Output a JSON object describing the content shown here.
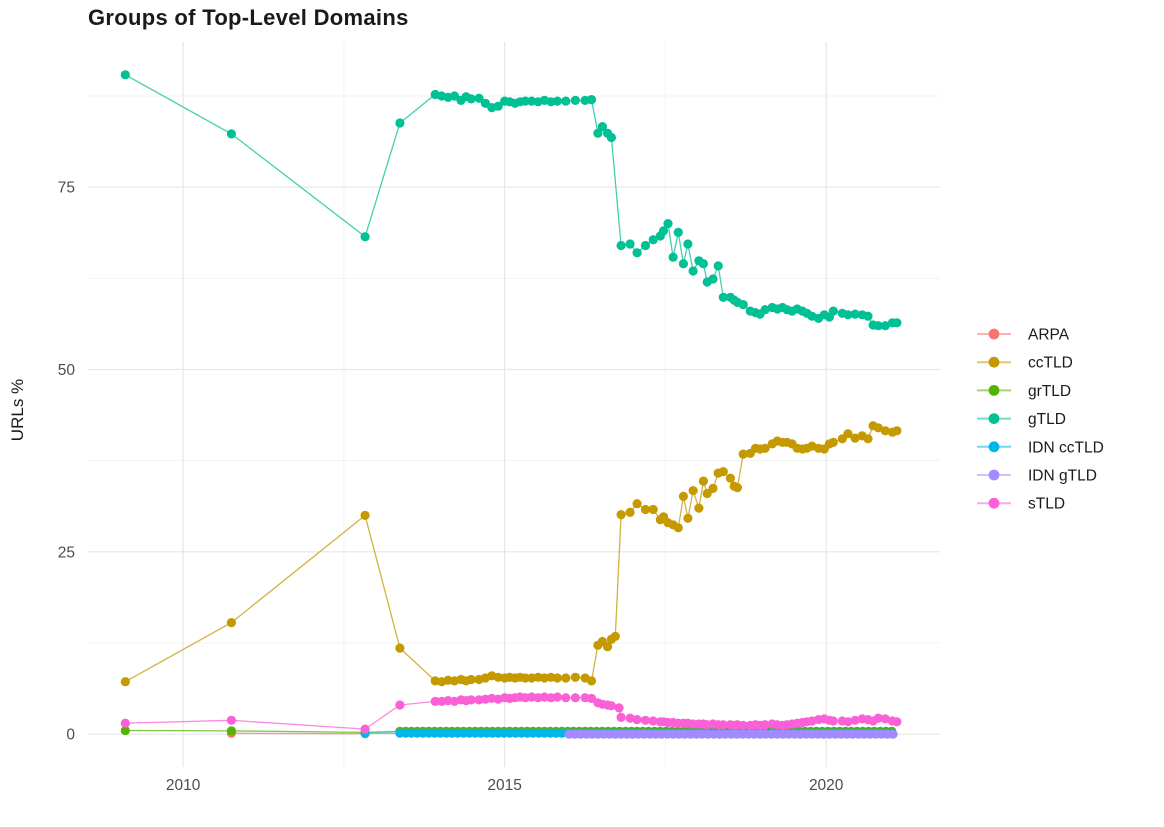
{
  "title": "Groups of Top-Level Domains",
  "chart_data": {
    "type": "line",
    "title": "Groups of Top-Level Domains",
    "xlabel": "",
    "ylabel": "URLs %",
    "xlim": [
      2008.52,
      2021.77
    ],
    "ylim": [
      -4.5,
      94.9
    ],
    "x_ticks": [
      2010,
      2015,
      2020
    ],
    "x_minor_ticks": [
      2012.5,
      2017.5
    ],
    "y_ticks": [
      0,
      25,
      50,
      75
    ],
    "y_minor_ticks": [
      12.5,
      37.5,
      62.5,
      87.5
    ],
    "grid": "major+minor",
    "legend_position": "right",
    "series": [
      {
        "name": "ARPA",
        "color": "#F8766D",
        "points": [
          [
            2010.75,
            0.12
          ],
          [
            2012.83,
            0.06
          ]
        ]
      },
      {
        "name": "ccTLD",
        "color": "#C49A00",
        "points": [
          [
            2009.1,
            7.2
          ],
          [
            2010.75,
            15.3
          ],
          [
            2012.83,
            30.0
          ],
          [
            2013.37,
            11.8
          ],
          [
            2013.92,
            7.3
          ],
          [
            2014.02,
            7.2
          ],
          [
            2014.12,
            7.4
          ],
          [
            2014.22,
            7.3
          ],
          [
            2014.32,
            7.5
          ],
          [
            2014.4,
            7.3
          ],
          [
            2014.48,
            7.5
          ],
          [
            2014.6,
            7.5
          ],
          [
            2014.7,
            7.7
          ],
          [
            2014.8,
            8.0
          ],
          [
            2014.9,
            7.8
          ],
          [
            2015.0,
            7.7
          ],
          [
            2015.08,
            7.8
          ],
          [
            2015.16,
            7.7
          ],
          [
            2015.24,
            7.8
          ],
          [
            2015.32,
            7.7
          ],
          [
            2015.42,
            7.7
          ],
          [
            2015.52,
            7.8
          ],
          [
            2015.62,
            7.7
          ],
          [
            2015.72,
            7.8
          ],
          [
            2015.82,
            7.7
          ],
          [
            2015.95,
            7.7
          ],
          [
            2016.1,
            7.8
          ],
          [
            2016.25,
            7.7
          ],
          [
            2016.35,
            7.3
          ],
          [
            2016.45,
            12.2
          ],
          [
            2016.52,
            12.7
          ],
          [
            2016.6,
            12.0
          ],
          [
            2016.66,
            13.0
          ],
          [
            2016.72,
            13.4
          ],
          [
            2016.81,
            30.1
          ],
          [
            2016.95,
            30.4
          ],
          [
            2017.06,
            31.6
          ],
          [
            2017.19,
            30.8
          ],
          [
            2017.31,
            30.8
          ],
          [
            2017.42,
            29.4
          ],
          [
            2017.47,
            29.8
          ],
          [
            2017.54,
            29.0
          ],
          [
            2017.62,
            28.7
          ],
          [
            2017.7,
            28.3
          ],
          [
            2017.78,
            32.6
          ],
          [
            2017.85,
            29.6
          ],
          [
            2017.93,
            33.4
          ],
          [
            2018.02,
            31.0
          ],
          [
            2018.09,
            34.7
          ],
          [
            2018.15,
            33.0
          ],
          [
            2018.24,
            33.7
          ],
          [
            2018.32,
            35.8
          ],
          [
            2018.4,
            36.0
          ],
          [
            2018.51,
            35.1
          ],
          [
            2018.57,
            34.0
          ],
          [
            2018.62,
            33.8
          ],
          [
            2018.71,
            38.4
          ],
          [
            2018.82,
            38.5
          ],
          [
            2018.9,
            39.2
          ],
          [
            2018.97,
            39.1
          ],
          [
            2019.05,
            39.2
          ],
          [
            2019.16,
            39.8
          ],
          [
            2019.24,
            40.2
          ],
          [
            2019.32,
            40.0
          ],
          [
            2019.39,
            40.0
          ],
          [
            2019.47,
            39.8
          ],
          [
            2019.55,
            39.2
          ],
          [
            2019.63,
            39.1
          ],
          [
            2019.7,
            39.2
          ],
          [
            2019.78,
            39.5
          ],
          [
            2019.88,
            39.2
          ],
          [
            2019.97,
            39.1
          ],
          [
            2020.05,
            39.8
          ],
          [
            2020.11,
            40.0
          ],
          [
            2020.25,
            40.5
          ],
          [
            2020.34,
            41.2
          ],
          [
            2020.45,
            40.6
          ],
          [
            2020.56,
            40.9
          ],
          [
            2020.65,
            40.5
          ],
          [
            2020.73,
            42.3
          ],
          [
            2020.81,
            42.0
          ],
          [
            2020.92,
            41.6
          ],
          [
            2021.03,
            41.4
          ],
          [
            2021.1,
            41.6
          ]
        ]
      },
      {
        "name": "grTLD",
        "color": "#53B400",
        "points": [
          [
            2009.1,
            0.5
          ],
          [
            2010.75,
            0.45
          ],
          [
            2012.83,
            0.25
          ]
        ],
        "runs": [
          {
            "from": 2013.37,
            "to": 2021.1,
            "step": 0.09,
            "value": 0.4
          }
        ]
      },
      {
        "name": "gTLD",
        "color": "#00C094",
        "points": [
          [
            2009.1,
            90.4
          ],
          [
            2010.75,
            82.3
          ],
          [
            2012.83,
            68.2
          ],
          [
            2013.37,
            83.8
          ],
          [
            2013.92,
            87.7
          ],
          [
            2014.02,
            87.5
          ],
          [
            2014.12,
            87.3
          ],
          [
            2014.22,
            87.5
          ],
          [
            2014.32,
            86.9
          ],
          [
            2014.4,
            87.4
          ],
          [
            2014.48,
            87.1
          ],
          [
            2014.6,
            87.2
          ],
          [
            2014.7,
            86.5
          ],
          [
            2014.8,
            85.9
          ],
          [
            2014.9,
            86.1
          ],
          [
            2015.0,
            86.8
          ],
          [
            2015.08,
            86.7
          ],
          [
            2015.16,
            86.5
          ],
          [
            2015.24,
            86.7
          ],
          [
            2015.32,
            86.8
          ],
          [
            2015.42,
            86.8
          ],
          [
            2015.52,
            86.7
          ],
          [
            2015.62,
            86.9
          ],
          [
            2015.72,
            86.7
          ],
          [
            2015.82,
            86.8
          ],
          [
            2015.95,
            86.8
          ],
          [
            2016.1,
            86.9
          ],
          [
            2016.25,
            86.9
          ],
          [
            2016.35,
            87.0
          ],
          [
            2016.45,
            82.4
          ],
          [
            2016.52,
            83.3
          ],
          [
            2016.6,
            82.4
          ],
          [
            2016.66,
            81.8
          ],
          [
            2016.81,
            67.0
          ],
          [
            2016.95,
            67.2
          ],
          [
            2017.06,
            66.0
          ],
          [
            2017.19,
            67.0
          ],
          [
            2017.31,
            67.8
          ],
          [
            2017.42,
            68.3
          ],
          [
            2017.47,
            69.0
          ],
          [
            2017.54,
            70.0
          ],
          [
            2017.62,
            65.4
          ],
          [
            2017.7,
            68.8
          ],
          [
            2017.78,
            64.5
          ],
          [
            2017.85,
            67.2
          ],
          [
            2017.93,
            63.5
          ],
          [
            2018.02,
            64.9
          ],
          [
            2018.09,
            64.5
          ],
          [
            2018.15,
            62.0
          ],
          [
            2018.24,
            62.4
          ],
          [
            2018.32,
            64.2
          ],
          [
            2018.4,
            59.9
          ],
          [
            2018.51,
            59.9
          ],
          [
            2018.57,
            59.5
          ],
          [
            2018.62,
            59.2
          ],
          [
            2018.71,
            58.9
          ],
          [
            2018.82,
            58.0
          ],
          [
            2018.9,
            57.8
          ],
          [
            2018.97,
            57.6
          ],
          [
            2019.05,
            58.2
          ],
          [
            2019.16,
            58.5
          ],
          [
            2019.24,
            58.3
          ],
          [
            2019.32,
            58.5
          ],
          [
            2019.39,
            58.2
          ],
          [
            2019.47,
            58.0
          ],
          [
            2019.55,
            58.3
          ],
          [
            2019.63,
            58.0
          ],
          [
            2019.7,
            57.7
          ],
          [
            2019.78,
            57.3
          ],
          [
            2019.88,
            57.0
          ],
          [
            2019.97,
            57.5
          ],
          [
            2020.05,
            57.2
          ],
          [
            2020.11,
            58.0
          ],
          [
            2020.25,
            57.7
          ],
          [
            2020.34,
            57.5
          ],
          [
            2020.45,
            57.6
          ],
          [
            2020.56,
            57.5
          ],
          [
            2020.65,
            57.3
          ],
          [
            2020.73,
            56.1
          ],
          [
            2020.81,
            56.0
          ],
          [
            2020.92,
            56.0
          ],
          [
            2021.03,
            56.4
          ],
          [
            2021.1,
            56.4
          ]
        ]
      },
      {
        "name": "IDN ccTLD",
        "color": "#00B6EB",
        "points": [
          [
            2012.83,
            0.15
          ]
        ],
        "runs": [
          {
            "from": 2013.37,
            "to": 2021.1,
            "step": 0.09,
            "value": 0.15
          }
        ]
      },
      {
        "name": "IDN gTLD",
        "color": "#A58AFF",
        "points": [],
        "runs": [
          {
            "from": 2016.0,
            "to": 2021.1,
            "step": 0.09,
            "value": 0.0
          }
        ]
      },
      {
        "name": "sTLD",
        "color": "#FB61D7",
        "points": [
          [
            2009.1,
            1.5
          ],
          [
            2010.75,
            1.9
          ],
          [
            2012.83,
            0.7
          ],
          [
            2013.37,
            4.0
          ],
          [
            2013.92,
            4.5
          ],
          [
            2014.02,
            4.5
          ],
          [
            2014.12,
            4.6
          ],
          [
            2014.22,
            4.5
          ],
          [
            2014.32,
            4.7
          ],
          [
            2014.4,
            4.6
          ],
          [
            2014.48,
            4.7
          ],
          [
            2014.6,
            4.7
          ],
          [
            2014.7,
            4.8
          ],
          [
            2014.8,
            4.9
          ],
          [
            2014.9,
            4.8
          ],
          [
            2015.0,
            5.0
          ],
          [
            2015.08,
            4.9
          ],
          [
            2015.16,
            5.0
          ],
          [
            2015.24,
            5.1
          ],
          [
            2015.32,
            5.0
          ],
          [
            2015.42,
            5.1
          ],
          [
            2015.52,
            5.0
          ],
          [
            2015.62,
            5.1
          ],
          [
            2015.72,
            5.0
          ],
          [
            2015.82,
            5.1
          ],
          [
            2015.95,
            5.0
          ],
          [
            2016.1,
            5.0
          ],
          [
            2016.25,
            5.0
          ],
          [
            2016.35,
            4.9
          ],
          [
            2016.45,
            4.3
          ],
          [
            2016.52,
            4.1
          ],
          [
            2016.6,
            4.0
          ],
          [
            2016.66,
            3.9
          ],
          [
            2016.78,
            3.6
          ],
          [
            2016.81,
            2.3
          ],
          [
            2016.95,
            2.2
          ],
          [
            2017.06,
            2.0
          ],
          [
            2017.19,
            1.9
          ],
          [
            2017.31,
            1.8
          ],
          [
            2017.42,
            1.7
          ],
          [
            2017.47,
            1.7
          ],
          [
            2017.54,
            1.6
          ],
          [
            2017.62,
            1.6
          ],
          [
            2017.7,
            1.5
          ],
          [
            2017.78,
            1.5
          ],
          [
            2017.85,
            1.5
          ],
          [
            2017.93,
            1.4
          ],
          [
            2018.02,
            1.4
          ],
          [
            2018.09,
            1.4
          ],
          [
            2018.15,
            1.3
          ],
          [
            2018.24,
            1.4
          ],
          [
            2018.32,
            1.3
          ],
          [
            2018.4,
            1.3
          ],
          [
            2018.51,
            1.3
          ],
          [
            2018.57,
            1.2
          ],
          [
            2018.62,
            1.3
          ],
          [
            2018.71,
            1.2
          ],
          [
            2018.82,
            1.2
          ],
          [
            2018.9,
            1.3
          ],
          [
            2018.97,
            1.2
          ],
          [
            2019.05,
            1.3
          ],
          [
            2019.16,
            1.4
          ],
          [
            2019.24,
            1.3
          ],
          [
            2019.32,
            1.2
          ],
          [
            2019.39,
            1.3
          ],
          [
            2019.47,
            1.4
          ],
          [
            2019.55,
            1.5
          ],
          [
            2019.63,
            1.6
          ],
          [
            2019.7,
            1.7
          ],
          [
            2019.78,
            1.8
          ],
          [
            2019.88,
            2.0
          ],
          [
            2019.97,
            2.1
          ],
          [
            2020.05,
            1.9
          ],
          [
            2020.11,
            1.8
          ],
          [
            2020.25,
            1.8
          ],
          [
            2020.34,
            1.7
          ],
          [
            2020.45,
            1.9
          ],
          [
            2020.56,
            2.1
          ],
          [
            2020.65,
            2.0
          ],
          [
            2020.73,
            1.8
          ],
          [
            2020.81,
            2.2
          ],
          [
            2020.92,
            2.1
          ],
          [
            2021.03,
            1.8
          ],
          [
            2021.1,
            1.7
          ]
        ]
      }
    ],
    "legend_items": [
      "ARPA",
      "ccTLD",
      "grTLD",
      "gTLD",
      "IDN ccTLD",
      "IDN gTLD",
      "sTLD"
    ]
  },
  "colors": {
    "background": "#ffffff",
    "grid_major": "#e7e7e7",
    "grid_minor": "#f3f3f3",
    "tick_text": "#4d4d4d",
    "title_text": "#1a1a1a"
  }
}
